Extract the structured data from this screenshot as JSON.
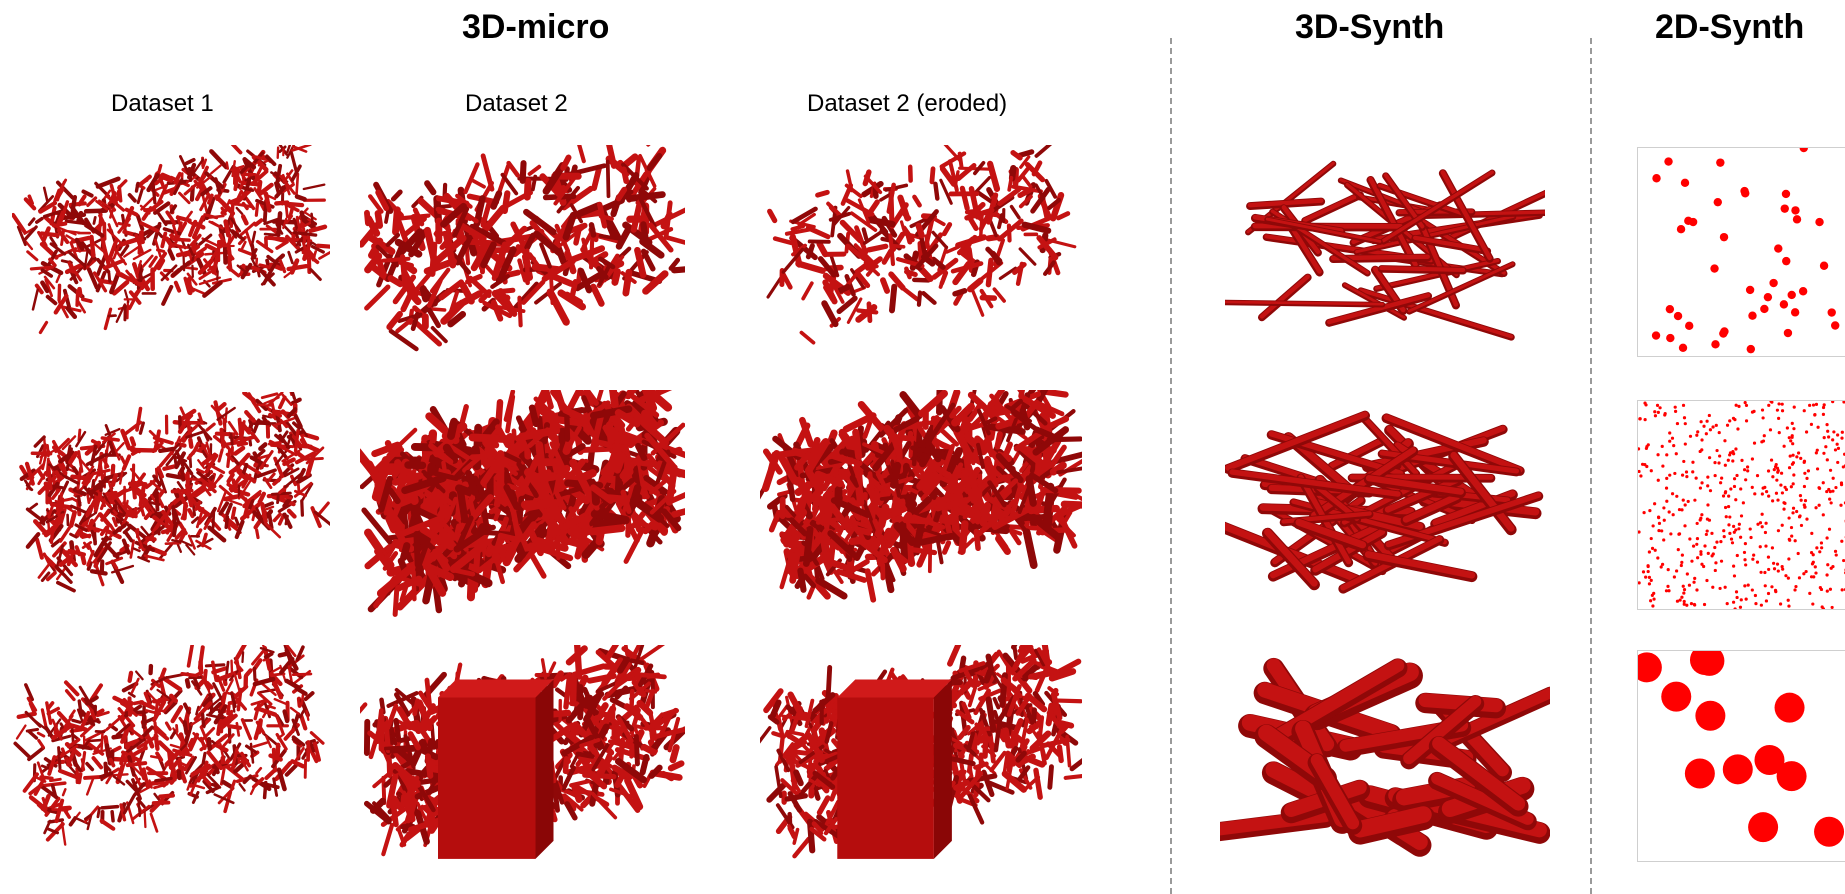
{
  "groups": {
    "micro": {
      "title": "3D-micro"
    },
    "synth3d": {
      "title": "3D-Synth"
    },
    "synth2d": {
      "title": "2D-Synth"
    }
  },
  "columns": {
    "dataset1": "Dataset 1",
    "dataset2": "Dataset 2",
    "dataset2_eroded": "Dataset 2 (eroded)"
  },
  "colors": {
    "material": "#c41212",
    "material_dark": "#8f0808",
    "particle2d": "#ff0000",
    "divider": "#9a9a9a"
  }
}
